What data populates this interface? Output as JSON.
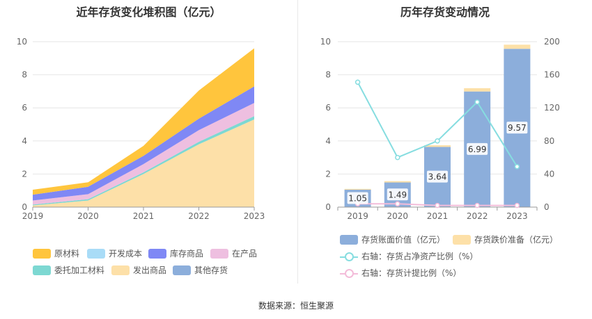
{
  "left_title": "近年存货变化堆积图（亿元）",
  "right_title": "历年存货变动情况",
  "source": "数据来源：恒生聚源",
  "colors": {
    "raw_materials": "#ffc53d",
    "dev_cost": "#a9dcf7",
    "inventory_goods": "#7f88f5",
    "wip": "#eebfe0",
    "consigned": "#7dd8d2",
    "shipped": "#fde0a8",
    "other": "#8caedb",
    "book_value_bar": "#8caedb",
    "impairment_bar": "#fde0a8",
    "ratio_line": "#86dde0",
    "provision_line": "#f3bcd9"
  },
  "legend_left": [
    {
      "label": "原材料",
      "color_key": "raw_materials"
    },
    {
      "label": "开发成本",
      "color_key": "dev_cost"
    },
    {
      "label": "库存商品",
      "color_key": "inventory_goods"
    },
    {
      "label": "在产品",
      "color_key": "wip"
    },
    {
      "label": "委托加工材料",
      "color_key": "consigned"
    },
    {
      "label": "发出商品",
      "color_key": "shipped"
    },
    {
      "label": "其他存货",
      "color_key": "other"
    }
  ],
  "legend_right": [
    {
      "label": "存货账面价值（亿元）",
      "type": "bar",
      "color_key": "book_value_bar"
    },
    {
      "label": "存货跌价准备（亿元）",
      "type": "bar",
      "color_key": "impairment_bar"
    },
    {
      "label": "右轴：存货占净资产比例（%）",
      "type": "line",
      "color_key": "ratio_line"
    },
    {
      "label": "右轴：存货计提比例（%）",
      "type": "line",
      "color_key": "provision_line"
    }
  ],
  "chart_data": [
    {
      "type": "area",
      "stacked": true,
      "title": "近年存货变化堆积图（亿元）",
      "categories": [
        "2019",
        "2020",
        "2021",
        "2022",
        "2023"
      ],
      "ylim": [
        0,
        10
      ],
      "yticks": [
        0,
        2,
        4,
        6,
        8,
        10
      ],
      "grid": true,
      "legend_position": "bottom",
      "series": [
        {
          "name": "发出商品",
          "color_key": "shipped",
          "values": [
            0.1,
            0.4,
            2.0,
            3.8,
            5.3
          ]
        },
        {
          "name": "委托加工材料",
          "color_key": "consigned",
          "values": [
            0.05,
            0.08,
            0.1,
            0.15,
            0.2
          ]
        },
        {
          "name": "在产品",
          "color_key": "wip",
          "values": [
            0.25,
            0.3,
            0.5,
            0.7,
            0.8
          ]
        },
        {
          "name": "库存商品",
          "color_key": "inventory_goods",
          "values": [
            0.35,
            0.45,
            0.5,
            0.7,
            1.0
          ]
        },
        {
          "name": "开发成本",
          "color_key": "dev_cost",
          "values": [
            0,
            0,
            0,
            0,
            0
          ]
        },
        {
          "name": "其他存货",
          "color_key": "other",
          "values": [
            0,
            0,
            0,
            0,
            0
          ]
        },
        {
          "name": "原材料",
          "color_key": "raw_materials",
          "values": [
            0.3,
            0.27,
            0.6,
            1.7,
            2.3
          ]
        }
      ]
    },
    {
      "type": "bar",
      "stacked": true,
      "title": "历年存货变动情况",
      "categories": [
        "2019",
        "2020",
        "2021",
        "2022",
        "2023"
      ],
      "ylim": [
        0,
        10
      ],
      "yticks": [
        0,
        2,
        4,
        6,
        8,
        10
      ],
      "y2lim": [
        0,
        200
      ],
      "y2ticks": [
        0,
        40,
        80,
        120,
        160,
        200
      ],
      "grid": true,
      "legend_position": "bottom",
      "series": [
        {
          "name": "存货账面价值（亿元）",
          "axis": "left",
          "color_key": "book_value_bar",
          "values": [
            1.05,
            1.49,
            3.64,
            6.99,
            9.57
          ],
          "labels": [
            "1.05",
            "1.49",
            "3.64",
            "6.99",
            "9.57"
          ]
        },
        {
          "name": "存货跌价准备（亿元）",
          "axis": "left",
          "color_key": "impairment_bar",
          "values": [
            0.05,
            0.08,
            0.1,
            0.2,
            0.25
          ]
        },
        {
          "name": "右轴：存货占净资产比例（%）",
          "type": "line",
          "axis": "right",
          "color_key": "ratio_line",
          "values": [
            151,
            60,
            80,
            127,
            49
          ]
        },
        {
          "name": "右轴：存货计提比例（%）",
          "type": "line",
          "axis": "right",
          "color_key": "provision_line",
          "values": [
            4,
            4,
            2,
            2,
            2
          ]
        }
      ]
    }
  ]
}
